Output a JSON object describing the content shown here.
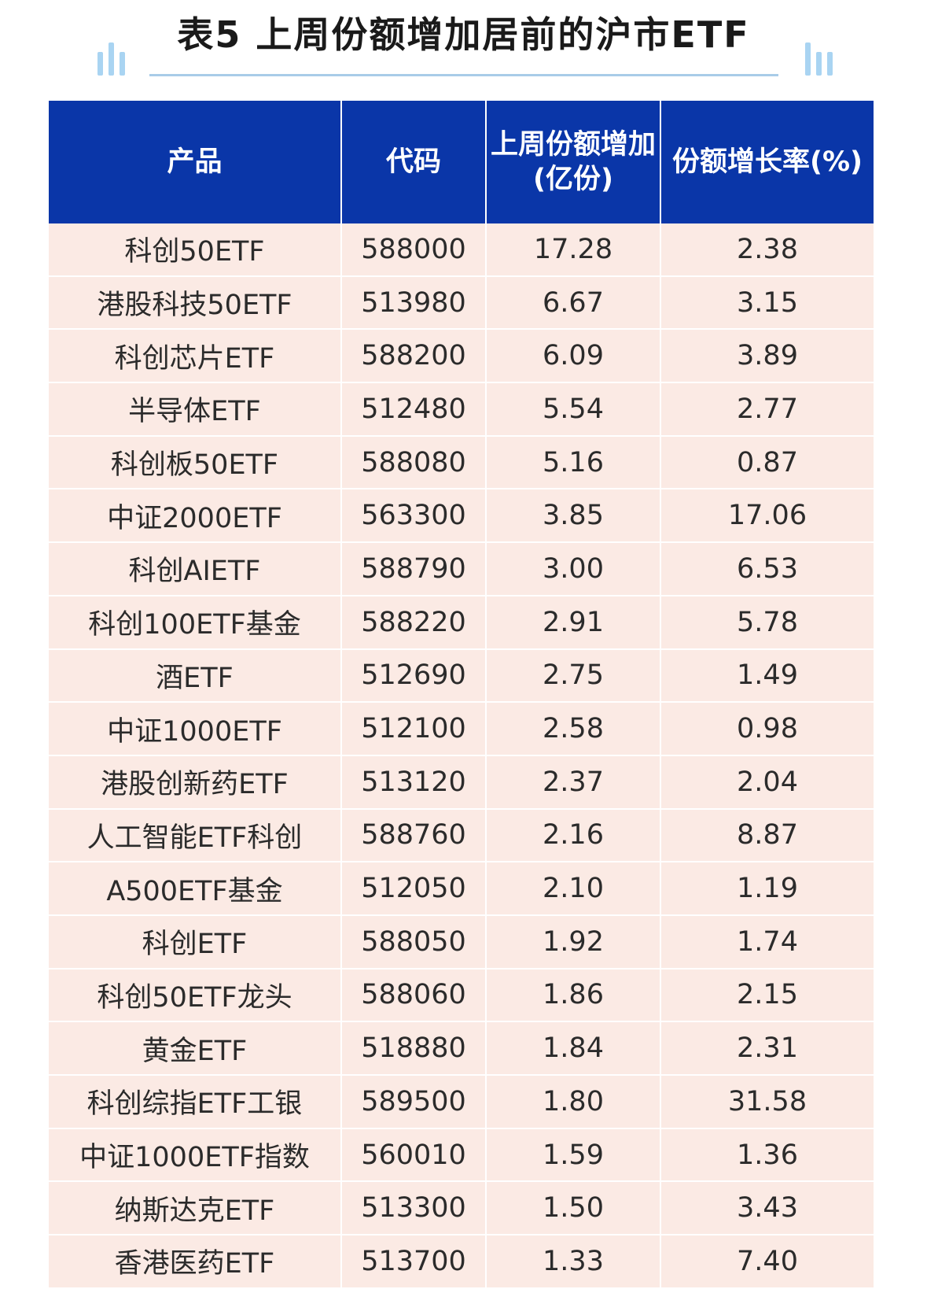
{
  "title": "表5 上周份额增加居前的沪市ETF",
  "table": {
    "headers": {
      "product": "产品",
      "code": "代码",
      "increase_line1": "上周份额增加",
      "increase_line2": "(亿份)",
      "rate": "份额增长率(%)"
    },
    "rows": [
      {
        "product": "科创50ETF",
        "code": "588000",
        "increase": "17.28",
        "rate": "2.38"
      },
      {
        "product": "港股科技50ETF",
        "code": "513980",
        "increase": "6.67",
        "rate": "3.15"
      },
      {
        "product": "科创芯片ETF",
        "code": "588200",
        "increase": "6.09",
        "rate": "3.89"
      },
      {
        "product": "半导体ETF",
        "code": "512480",
        "increase": "5.54",
        "rate": "2.77"
      },
      {
        "product": "科创板50ETF",
        "code": "588080",
        "increase": "5.16",
        "rate": "0.87"
      },
      {
        "product": "中证2000ETF",
        "code": "563300",
        "increase": "3.85",
        "rate": "17.06"
      },
      {
        "product": "科创AIETF",
        "code": "588790",
        "increase": "3.00",
        "rate": "6.53"
      },
      {
        "product": "科创100ETF基金",
        "code": "588220",
        "increase": "2.91",
        "rate": "5.78"
      },
      {
        "product": "酒ETF",
        "code": "512690",
        "increase": "2.75",
        "rate": "1.49"
      },
      {
        "product": "中证1000ETF",
        "code": "512100",
        "increase": "2.58",
        "rate": "0.98"
      },
      {
        "product": "港股创新药ETF",
        "code": "513120",
        "increase": "2.37",
        "rate": "2.04"
      },
      {
        "product": "人工智能ETF科创",
        "code": "588760",
        "increase": "2.16",
        "rate": "8.87"
      },
      {
        "product": "A500ETF基金",
        "code": "512050",
        "increase": "2.10",
        "rate": "1.19"
      },
      {
        "product": "科创ETF",
        "code": "588050",
        "increase": "1.92",
        "rate": "1.74"
      },
      {
        "product": "科创50ETF龙头",
        "code": "588060",
        "increase": "1.86",
        "rate": "2.15"
      },
      {
        "product": "黄金ETF",
        "code": "518880",
        "increase": "1.84",
        "rate": "2.31"
      },
      {
        "product": "科创综指ETF工银",
        "code": "589500",
        "increase": "1.80",
        "rate": "31.58"
      },
      {
        "product": "中证1000ETF指数",
        "code": "560010",
        "increase": "1.59",
        "rate": "1.36"
      },
      {
        "product": "纳斯达克ETF",
        "code": "513300",
        "increase": "1.50",
        "rate": "3.43"
      },
      {
        "product": "香港医药ETF",
        "code": "513700",
        "increase": "1.33",
        "rate": "7.40"
      }
    ]
  },
  "colors": {
    "header_bg": "#0a36a8",
    "row_bg": "#fbeae4",
    "accent": "#a9d4f2"
  }
}
